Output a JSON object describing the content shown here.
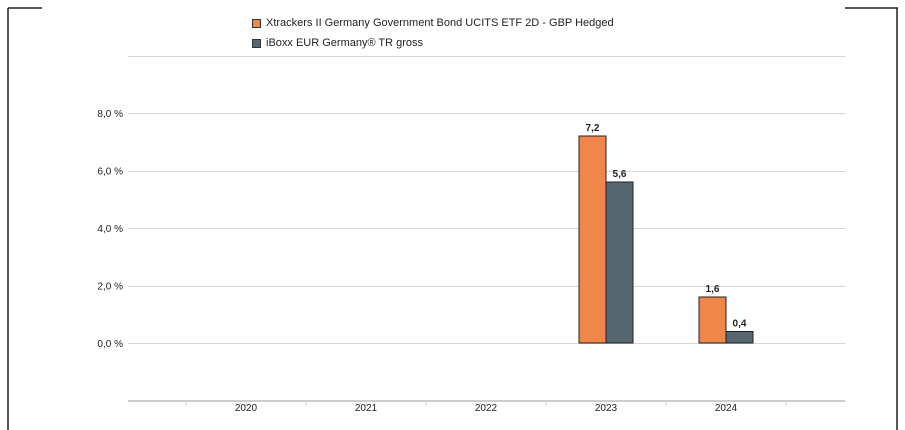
{
  "chart_data": {
    "type": "bar",
    "categories": [
      "2020",
      "2021",
      "2022",
      "2023",
      "2024"
    ],
    "series": [
      {
        "name": "Xtrackers II Germany Government Bond UCITS ETF 2D - GBP Hedged",
        "values": [
          null,
          null,
          null,
          7.2,
          1.6
        ],
        "labels": [
          "",
          "",
          "",
          "7,2",
          "1,6"
        ],
        "color": "#f0864a"
      },
      {
        "name": "iBoxx EUR Germany® TR gross",
        "values": [
          null,
          null,
          null,
          5.6,
          0.4
        ],
        "labels": [
          "",
          "",
          "",
          "5,6",
          "0,4"
        ],
        "color": "#566772"
      }
    ],
    "yticks": [
      0,
      2,
      4,
      6,
      8
    ],
    "ytick_labels": [
      "0,0 %",
      "2,0 %",
      "4,0 %",
      "6,0 %",
      "8,0 %"
    ],
    "ylim": [
      -2,
      10
    ],
    "grid": true,
    "legend_position": "top"
  }
}
